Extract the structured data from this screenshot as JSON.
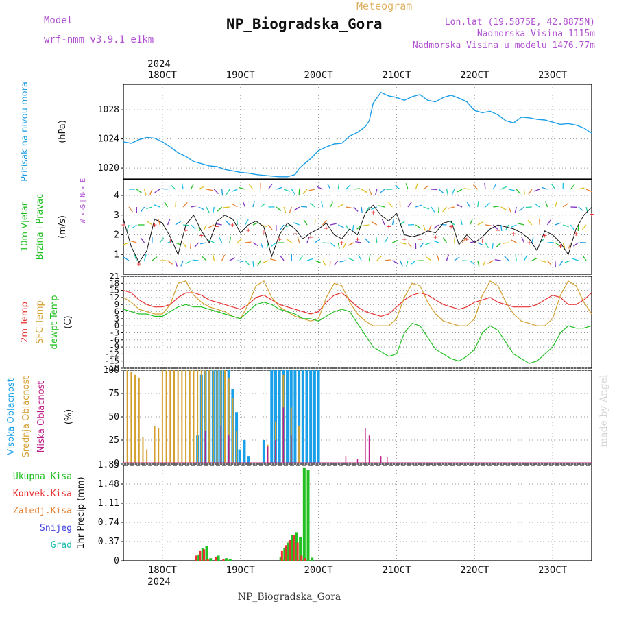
{
  "header": {
    "model_label": "Model",
    "model_name": "wrf-nmm_v3.9.1  e1km",
    "meteogram_label": "Meteogram",
    "station": "NP_Biogradska_Gora",
    "lonlat": "Lon,lat (19.5875E, 42.8875N)",
    "elevation": "Nadmorska Visina 1115m",
    "model_elevation": "Nadmorska Visina u modelu 1476.77m",
    "year": "2024",
    "footer_station": "NP_Biogradska_Gora",
    "watermark": "made by Angel"
  },
  "colors": {
    "pressure": "#1a9ee8",
    "wind_speed": "#111111",
    "gust": "#e83030",
    "temp2m": "#e83030",
    "sfc_temp": "#d4a030",
    "dewpt": "#22c022",
    "cloud_high": "#1aa0e8",
    "cloud_mid": "#d4a030",
    "cloud_low": "#c0208a",
    "precip_total": "#22c022",
    "precip_conv": "#e83030",
    "precip_frozen": "#e88030",
    "precip_snow": "#4040e0",
    "precip_hail": "#20c0b0",
    "purple_text": "#b050d0"
  },
  "chart_data": [
    {
      "type": "line",
      "panel": "pressure",
      "title": "",
      "ylabel_lines": [
        "Pritisak na nivou mora",
        "(hPa)"
      ],
      "x_unit": "days from 17 OCT 00Z",
      "xticks": [
        "18OCT",
        "19OCT",
        "20OCT",
        "21OCT",
        "22OCT",
        "23OCT"
      ],
      "xlim": [
        0.5,
        6.5
      ],
      "ylim": [
        1018.5,
        1031.5
      ],
      "yticks": [
        "1020",
        "1024",
        "1028"
      ],
      "series": [
        {
          "x": [
            0.5,
            0.6,
            0.7,
            0.8,
            0.9,
            1.0,
            1.1,
            1.2,
            1.3,
            1.4,
            1.5,
            1.6,
            1.7,
            1.8,
            1.9,
            2.0,
            2.1,
            2.2,
            2.3,
            2.4,
            2.5,
            2.6,
            2.7,
            2.75,
            2.8,
            2.9,
            3.0,
            3.1,
            3.2,
            3.3,
            3.4,
            3.5,
            3.6,
            3.65,
            3.7,
            3.8,
            3.9,
            4.0,
            4.1,
            4.2,
            4.3,
            4.4,
            4.5,
            4.6,
            4.7,
            4.8,
            4.9,
            5.0,
            5.1,
            5.2,
            5.3,
            5.4,
            5.5,
            5.6,
            5.7,
            5.8,
            5.9,
            6.0,
            6.1,
            6.2,
            6.3,
            6.4,
            6.5
          ],
          "values": [
            1023.6,
            1023.4,
            1023.9,
            1024.2,
            1024.1,
            1023.6,
            1022.9,
            1022.1,
            1021.6,
            1020.9,
            1020.6,
            1020.3,
            1020.2,
            1019.8,
            1019.6,
            1019.4,
            1019.3,
            1019.1,
            1019.0,
            1018.9,
            1018.8,
            1018.8,
            1019.1,
            1019.9,
            1020.4,
            1021.3,
            1022.4,
            1022.9,
            1023.3,
            1023.4,
            1024.4,
            1024.9,
            1025.7,
            1026.5,
            1028.9,
            1030.4,
            1029.9,
            1029.7,
            1029.3,
            1029.8,
            1030.1,
            1029.3,
            1029.1,
            1029.7,
            1030.0,
            1029.6,
            1029.1,
            1027.9,
            1027.6,
            1027.8,
            1027.3,
            1026.5,
            1026.2,
            1027.0,
            1026.9,
            1026.7,
            1026.6,
            1026.3,
            1026.0,
            1026.1,
            1025.9,
            1025.5,
            1024.8
          ]
        }
      ]
    },
    {
      "type": "line",
      "panel": "wind",
      "ylabel_lines": [
        "10m Vjetar",
        "Brzina i Pravac",
        "(m/s)"
      ],
      "compass_lines": [
        "N",
        "W <--|--> E",
        "S"
      ],
      "ylim": [
        0,
        4.8
      ],
      "yticks": [
        "1",
        "2",
        "3",
        "4"
      ],
      "series": [
        {
          "name": "speed",
          "x": [
            0.5,
            0.6,
            0.7,
            0.8,
            0.9,
            1.0,
            1.1,
            1.2,
            1.3,
            1.4,
            1.5,
            1.6,
            1.7,
            1.8,
            1.9,
            2.0,
            2.1,
            2.2,
            2.3,
            2.4,
            2.5,
            2.6,
            2.7,
            2.8,
            2.9,
            3.0,
            3.1,
            3.2,
            3.3,
            3.4,
            3.5,
            3.6,
            3.7,
            3.8,
            3.9,
            4.0,
            4.1,
            4.2,
            4.3,
            4.4,
            4.5,
            4.6,
            4.7,
            4.8,
            4.9,
            5.0,
            5.1,
            5.2,
            5.3,
            5.4,
            5.5,
            5.6,
            5.7,
            5.8,
            5.9,
            6.0,
            6.1,
            6.2,
            6.3,
            6.4,
            6.5
          ],
          "values": [
            2.8,
            1.4,
            0.6,
            1.2,
            2.8,
            2.6,
            1.9,
            1.0,
            2.5,
            3.0,
            2.2,
            1.6,
            2.7,
            3.0,
            2.8,
            2.1,
            2.5,
            2.7,
            2.4,
            0.9,
            2.0,
            2.6,
            2.3,
            1.8,
            2.1,
            2.3,
            2.6,
            2.0,
            1.8,
            2.3,
            2.0,
            3.1,
            3.5,
            3.0,
            2.7,
            3.1,
            2.0,
            1.9,
            2.0,
            2.2,
            2.1,
            2.6,
            2.7,
            1.5,
            2.0,
            1.6,
            1.9,
            2.3,
            2.5,
            2.4,
            2.3,
            2.1,
            1.8,
            1.2,
            2.2,
            2.0,
            1.6,
            1.0,
            2.3,
            3.0,
            3.4
          ]
        }
      ]
    },
    {
      "type": "line",
      "panel": "temperature",
      "ylabel_lines": [
        "2m Temp",
        "SFC Temp",
        "dewpt Temp",
        "(C)"
      ],
      "ylim": [
        -18,
        21
      ],
      "yticks": [
        "21",
        "18",
        "15",
        "12",
        "9",
        "6",
        "3",
        "0",
        "-3",
        "-6",
        "-9",
        "-12",
        "-15",
        "-18"
      ],
      "series": [
        {
          "name": "2m Temp",
          "x": [
            0.5,
            0.6,
            0.7,
            0.8,
            0.9,
            1.0,
            1.1,
            1.2,
            1.3,
            1.4,
            1.5,
            1.6,
            1.7,
            1.8,
            1.9,
            2.0,
            2.1,
            2.2,
            2.3,
            2.4,
            2.5,
            2.6,
            2.7,
            2.8,
            2.9,
            3.0,
            3.1,
            3.2,
            3.3,
            3.4,
            3.5,
            3.6,
            3.7,
            3.8,
            3.9,
            4.0,
            4.1,
            4.2,
            4.3,
            4.4,
            4.5,
            4.6,
            4.7,
            4.8,
            4.9,
            5.0,
            5.1,
            5.2,
            5.3,
            5.4,
            5.5,
            5.6,
            5.7,
            5.8,
            5.9,
            6.0,
            6.1,
            6.2,
            6.3,
            6.4,
            6.5
          ],
          "values": [
            15,
            14,
            11,
            9,
            8,
            8,
            9,
            12,
            14,
            14,
            13,
            11,
            10,
            9,
            8,
            7,
            9,
            12,
            13,
            11,
            9,
            8,
            7,
            6,
            5,
            6,
            10,
            13,
            14,
            11,
            8,
            6,
            5,
            4,
            5,
            8,
            11,
            13,
            14,
            13,
            11,
            9,
            8,
            7,
            8,
            10,
            11,
            12,
            10,
            9,
            8,
            8,
            8,
            9,
            11,
            13,
            12,
            9,
            9,
            11,
            14
          ]
        },
        {
          "name": "SFC Temp",
          "x": [
            0.5,
            0.6,
            0.7,
            0.8,
            0.9,
            1.0,
            1.1,
            1.2,
            1.3,
            1.4,
            1.5,
            1.6,
            1.7,
            1.8,
            1.9,
            2.0,
            2.1,
            2.2,
            2.3,
            2.4,
            2.5,
            2.6,
            2.7,
            2.8,
            2.9,
            3.0,
            3.1,
            3.2,
            3.3,
            3.4,
            3.5,
            3.6,
            3.7,
            3.8,
            3.9,
            4.0,
            4.1,
            4.2,
            4.3,
            4.4,
            4.5,
            4.6,
            4.7,
            4.8,
            4.9,
            5.0,
            5.1,
            5.2,
            5.3,
            5.4,
            5.5,
            5.6,
            5.7,
            5.8,
            5.9,
            6.0,
            6.1,
            6.2,
            6.3,
            6.4,
            6.5
          ],
          "values": [
            12,
            10,
            7,
            6,
            5,
            5,
            9,
            18,
            19,
            13,
            10,
            8,
            7,
            6,
            4,
            3,
            9,
            17,
            19,
            12,
            8,
            6,
            4,
            3,
            2,
            3,
            12,
            18,
            17,
            10,
            5,
            2,
            0,
            0,
            0,
            3,
            12,
            18,
            17,
            10,
            5,
            2,
            1,
            0,
            0,
            3,
            13,
            19,
            17,
            10,
            5,
            2,
            1,
            0,
            0,
            3,
            13,
            19,
            17,
            10,
            5
          ]
        },
        {
          "name": "dewpt Temp",
          "x": [
            0.5,
            0.6,
            0.7,
            0.8,
            0.9,
            1.0,
            1.1,
            1.2,
            1.3,
            1.4,
            1.5,
            1.6,
            1.7,
            1.8,
            1.9,
            2.0,
            2.1,
            2.2,
            2.3,
            2.4,
            2.5,
            2.6,
            2.7,
            2.8,
            2.9,
            3.0,
            3.1,
            3.2,
            3.3,
            3.4,
            3.5,
            3.6,
            3.7,
            3.8,
            3.9,
            4.0,
            4.1,
            4.2,
            4.3,
            4.4,
            4.5,
            4.6,
            4.7,
            4.8,
            4.9,
            5.0,
            5.1,
            5.2,
            5.3,
            5.4,
            5.5,
            5.6,
            5.7,
            5.8,
            5.9,
            6.0,
            6.1,
            6.2,
            6.3,
            6.4,
            6.5
          ],
          "values": [
            7,
            6,
            5,
            5,
            4,
            4,
            6,
            8,
            9,
            8,
            8,
            7,
            6,
            5,
            4,
            3,
            6,
            9,
            10,
            9,
            7,
            6,
            5,
            3,
            3,
            2,
            4,
            6,
            7,
            6,
            1,
            -4,
            -9,
            -11,
            -13,
            -12,
            -3,
            1,
            0,
            -5,
            -10,
            -12,
            -14,
            -15,
            -13,
            -10,
            -3,
            0,
            -2,
            -7,
            -12,
            -14,
            -16,
            -15,
            -12,
            -9,
            -3,
            0,
            -1,
            -1,
            0
          ]
        }
      ]
    },
    {
      "type": "bar",
      "panel": "clouds",
      "ylabel_lines": [
        "Visoka Oblacnost",
        "Srednja Oblacnost",
        "Niska Oblacnost",
        "(%)"
      ],
      "ylim": [
        0,
        100
      ],
      "yticks": [
        "0",
        "25",
        "50",
        "75",
        "100"
      ],
      "series": [
        {
          "name": "Visoka Oblacnost",
          "x": [
            1.45,
            1.5,
            1.55,
            1.6,
            1.65,
            1.7,
            1.75,
            1.8,
            1.85,
            1.9,
            1.95,
            1.99,
            2.05,
            2.1,
            2.3,
            2.4,
            2.45,
            2.5,
            2.55,
            2.6,
            2.65,
            2.7,
            2.75,
            2.8,
            2.85,
            2.9,
            2.95,
            3.0
          ],
          "values": [
            30,
            95,
            100,
            100,
            100,
            100,
            100,
            100,
            100,
            80,
            55,
            15,
            25,
            8,
            25,
            100,
            100,
            100,
            100,
            100,
            100,
            100,
            100,
            100,
            100,
            100,
            100,
            100
          ]
        },
        {
          "name": "Srednja Oblacnost",
          "x": [
            0.55,
            0.6,
            0.65,
            0.7,
            0.75,
            0.8,
            0.9,
            0.95,
            1.0,
            1.05,
            1.1,
            1.15,
            1.2,
            1.25,
            1.3,
            1.35,
            1.4,
            1.45,
            1.5,
            1.55,
            1.6,
            1.65,
            1.7,
            1.75,
            1.8,
            1.85,
            1.9,
            1.95,
            2.35,
            2.45,
            2.55,
            2.65,
            2.75
          ],
          "values": [
            100,
            98,
            95,
            92,
            28,
            15,
            40,
            38,
            100,
            100,
            100,
            100,
            100,
            100,
            100,
            100,
            100,
            100,
            100,
            100,
            100,
            100,
            100,
            100,
            100,
            92,
            70,
            35,
            20,
            45,
            95,
            60,
            40
          ]
        },
        {
          "name": "Niska Oblacnost",
          "x": [
            1.55,
            1.75,
            1.85,
            2.35,
            2.45,
            2.55,
            2.65,
            3.35,
            3.5,
            3.6,
            3.65,
            3.8,
            3.88
          ],
          "values": [
            35,
            40,
            30,
            18,
            25,
            60,
            30,
            8,
            5,
            38,
            30,
            8,
            7
          ]
        }
      ]
    },
    {
      "type": "bar",
      "panel": "precipitation",
      "ylabel_lines": [
        "1hr Precip (mm)"
      ],
      "legend": [
        "Ukupna Kisa",
        "Konvek.Kisa",
        "Zaledj.Kisa",
        "Snijeg",
        "Grad"
      ],
      "ylim": [
        0,
        1.85
      ],
      "yticks": [
        "0",
        "0.37",
        "0.74",
        "1.11",
        "1.48",
        "1.85"
      ],
      "series": [
        {
          "name": "Ukupna Kisa",
          "x": [
            1.45,
            1.5,
            1.55,
            1.6,
            1.7,
            1.8,
            1.85,
            2.5,
            2.55,
            2.6,
            2.65,
            2.7,
            2.75,
            2.8,
            2.85,
            2.9
          ],
          "values": [
            0.12,
            0.25,
            0.28,
            0.05,
            0.1,
            0.05,
            0.03,
            0.07,
            0.25,
            0.35,
            0.5,
            0.55,
            0.45,
            1.8,
            1.75,
            0.06
          ]
        },
        {
          "name": "Konvek.Kisa",
          "x": [
            1.45,
            1.5,
            1.55,
            1.6,
            1.7,
            1.8,
            2.55,
            2.6,
            2.65,
            2.7,
            2.75,
            2.8,
            2.85
          ],
          "values": [
            0.1,
            0.2,
            0.22,
            0.03,
            0.08,
            0.04,
            0.2,
            0.3,
            0.4,
            0.5,
            0.35,
            0.1,
            0.05
          ]
        }
      ]
    }
  ]
}
